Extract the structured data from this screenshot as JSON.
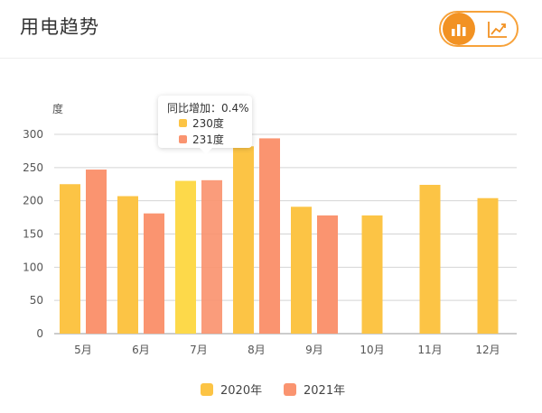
{
  "header": {
    "title": "用电趋势",
    "toggle": {
      "active": "bar-chart-icon",
      "icons": [
        "bar-chart-icon",
        "line-chart-icon"
      ]
    }
  },
  "colors": {
    "accent": "#f29223",
    "series_2020": "#fcc445",
    "series_2020_highlight": "#fdd94a",
    "series_2021": "#fa9470",
    "grid": "#d4d4d4",
    "axis_text": "#555555"
  },
  "tooltip": {
    "title": "同比增加：0.4%",
    "rows": [
      {
        "series": "2020年",
        "text": "230度"
      },
      {
        "series": "2021年",
        "text": "231度"
      }
    ]
  },
  "chart_data": {
    "type": "bar",
    "ylabel": "度",
    "ylim": [
      0,
      300
    ],
    "yticks": [
      0,
      50,
      100,
      150,
      200,
      250,
      300
    ],
    "grid": true,
    "legend_position": "bottom",
    "highlighted_category": "7月",
    "categories": [
      "5月",
      "6月",
      "7月",
      "8月",
      "9月",
      "10月",
      "11月",
      "12月"
    ],
    "series": [
      {
        "name": "2020年",
        "values": [
          225,
          207,
          230,
          282,
          191,
          178,
          224,
          204
        ]
      },
      {
        "name": "2021年",
        "values": [
          247,
          181,
          231,
          294,
          178,
          null,
          null,
          null
        ]
      }
    ]
  }
}
